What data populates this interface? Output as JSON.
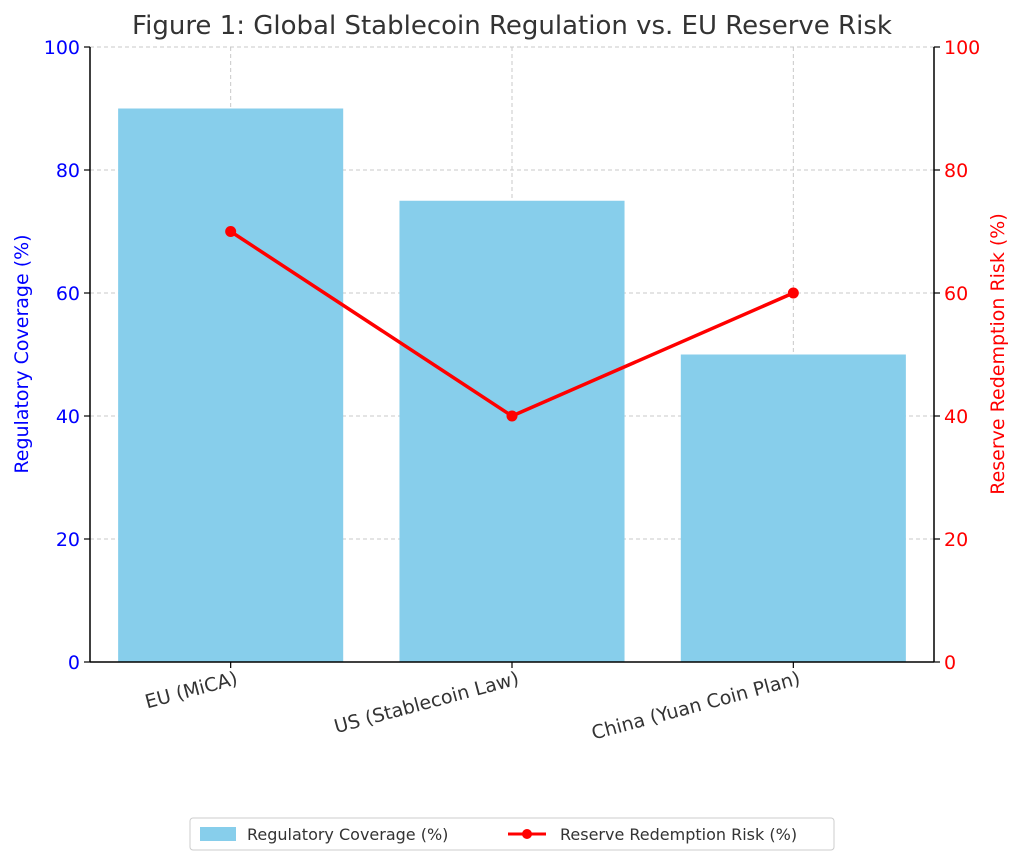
{
  "chart_data": {
    "type": "bar",
    "title": "Figure 1: Global Stablecoin Regulation vs. EU Reserve Risk",
    "categories": [
      "EU (MiCA)",
      "US (Stablecoin Law)",
      "China (Yuan Coin Plan)"
    ],
    "series": [
      {
        "name": "Regulatory Coverage (%)",
        "type": "bar",
        "axis": "left",
        "color": "#87ceeb",
        "values": [
          90,
          75,
          50
        ]
      },
      {
        "name": "Reserve Redemption Risk (%)",
        "type": "line",
        "axis": "right",
        "color": "#ff0000",
        "values": [
          70,
          40,
          60
        ]
      }
    ],
    "ylabel": "Regulatory Coverage (%)",
    "ylabel_right": "Reserve Redemption Risk (%)",
    "ylim": [
      0,
      100
    ],
    "ylim_right": [
      0,
      100
    ],
    "yticks": [
      "0",
      "20",
      "40",
      "60",
      "80",
      "100"
    ],
    "ylabel_color": "#0000ff",
    "ylabel_right_color": "#ff0000",
    "grid": true,
    "legend_position": "bottom-center"
  }
}
